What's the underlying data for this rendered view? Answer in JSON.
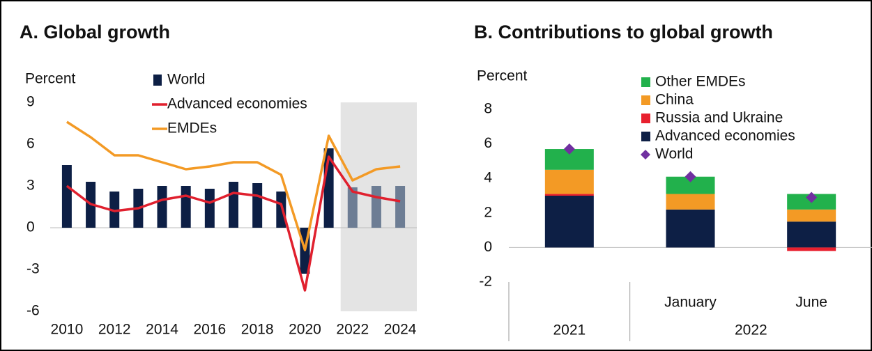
{
  "chart_data": [
    {
      "type": "bar_line",
      "title": "A. Global growth",
      "ylabel": "Percent",
      "x": [
        2010,
        2011,
        2012,
        2013,
        2014,
        2015,
        2016,
        2017,
        2018,
        2019,
        2020,
        2021,
        2022,
        2023,
        2024
      ],
      "xlim": [
        2009.3,
        2024.7
      ],
      "xticks": [
        2010,
        2012,
        2014,
        2016,
        2018,
        2020,
        2022,
        2024
      ],
      "ylim": [
        -6,
        9
      ],
      "yticks": [
        -6,
        -3,
        0,
        3,
        6,
        9
      ],
      "forecast_from": 2022,
      "forecast_color": "#6d7d94",
      "shade_color": "#e4e4e4",
      "series": [
        {
          "name": "World",
          "kind": "bar",
          "color": "#0d1f45",
          "values": [
            4.5,
            3.3,
            2.6,
            2.8,
            3.0,
            3.0,
            2.8,
            3.3,
            3.2,
            2.6,
            -3.3,
            5.7,
            2.9,
            3.0,
            3.0
          ]
        },
        {
          "name": "Advanced economies",
          "kind": "line",
          "color": "#e0202e",
          "values": [
            3.0,
            1.7,
            1.2,
            1.4,
            2.0,
            2.3,
            1.8,
            2.5,
            2.3,
            1.7,
            -4.5,
            5.1,
            2.6,
            2.2,
            1.9
          ]
        },
        {
          "name": "EMDEs",
          "kind": "line",
          "color": "#f39a25",
          "values": [
            7.6,
            6.5,
            5.2,
            5.2,
            4.7,
            4.2,
            4.4,
            4.7,
            4.7,
            3.8,
            -1.6,
            6.6,
            3.4,
            4.2,
            4.4
          ]
        }
      ]
    },
    {
      "type": "stacked_bar",
      "title": "B. Contributions to global growth",
      "ylabel": "Percent",
      "categories": [
        null,
        "January",
        "June"
      ],
      "groups": [
        {
          "label": "2021",
          "span": 1
        },
        {
          "label": "2022",
          "span": 2
        }
      ],
      "ylim": [
        -2,
        8
      ],
      "yticks": [
        -2,
        0,
        2,
        4,
        6,
        8
      ],
      "series": [
        {
          "name": "Other EMDEs",
          "kind": "bar",
          "color": "#22b14c",
          "values": [
            1.2,
            1.0,
            0.9
          ]
        },
        {
          "name": "China",
          "kind": "bar",
          "color": "#f39a25",
          "values": [
            1.4,
            0.9,
            0.7
          ]
        },
        {
          "name": "Russia and Ukraine",
          "kind": "bar",
          "color": "#e8202e",
          "values": [
            0.1,
            0.0,
            -0.2
          ]
        },
        {
          "name": "Advanced economies",
          "kind": "bar",
          "color": "#0d1f45",
          "values": [
            3.0,
            2.2,
            1.5
          ]
        },
        {
          "name": "World",
          "kind": "point",
          "color": "#7030a0",
          "values": [
            5.7,
            4.1,
            2.9
          ]
        }
      ]
    }
  ]
}
